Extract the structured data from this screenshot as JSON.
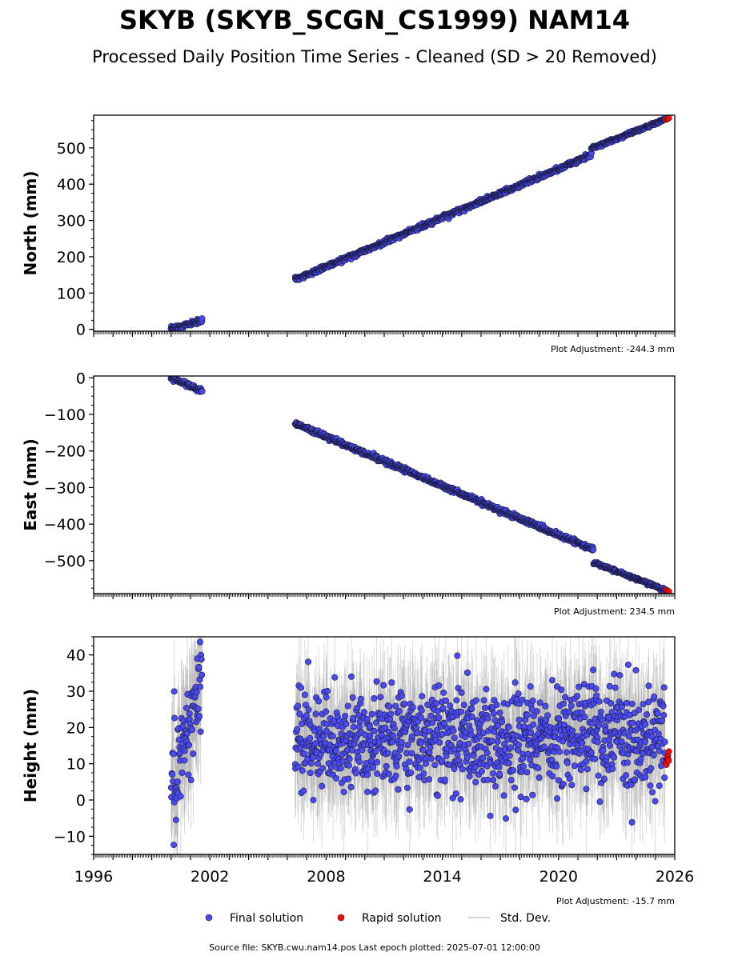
{
  "title": "SKYB (SKYB_SCGN_CS1999) NAM14",
  "subtitle": "Processed Daily Position Time Series - Cleaned (SD > 20 Removed)",
  "footer": "Source file: SKYB.cwu.nam14.pos  Last epoch plotted: 2025-07-01 12:00:00",
  "legend": {
    "final_label": "Final solution",
    "rapid_label": "Rapid solution",
    "sd_label": "Std. Dev.",
    "placement": "bottom-center"
  },
  "colors": {
    "final": "#4a4af0",
    "final_edge": "#1a1a40",
    "rapid": "#e81010",
    "sd": "#7a7a7a"
  },
  "chart_data": [
    {
      "type": "scatter",
      "ylabel": "North (mm)",
      "adjustment": "Plot Adjustment: -244.3 mm",
      "xlim": [
        1996,
        2026
      ],
      "ylim": [
        -5,
        590
      ],
      "yticks": [
        0,
        100,
        200,
        300,
        400,
        500
      ],
      "ytick_labels": [
        "0",
        "100",
        "200",
        "300",
        "400",
        "500"
      ],
      "segments": [
        {
          "x": [
            2000.0,
            2001.6
          ],
          "y": [
            0,
            25
          ],
          "noise": 3
        },
        {
          "x": [
            2006.4,
            2021.7
          ],
          "y": [
            137,
            480
          ],
          "noise": 3
        },
        {
          "x": [
            2021.7,
            2025.5
          ],
          "y": [
            498,
            578
          ],
          "noise": 2
        }
      ],
      "rapid": {
        "x": [
          2025.55,
          2025.7
        ],
        "y": [
          578,
          582
        ]
      }
    },
    {
      "type": "scatter",
      "ylabel": "East (mm)",
      "adjustment": "Plot Adjustment: 234.5 mm",
      "xlim": [
        1996,
        2026
      ],
      "ylim": [
        -590,
        5
      ],
      "yticks": [
        0,
        -100,
        -200,
        -300,
        -400,
        -500
      ],
      "ytick_labels": [
        "0",
        "−100",
        "−200",
        "−300",
        "−400",
        "−500"
      ],
      "segments": [
        {
          "x": [
            2000.0,
            2001.6
          ],
          "y": [
            0,
            -35
          ],
          "noise": 3
        },
        {
          "x": [
            2006.4,
            2021.8
          ],
          "y": [
            -125,
            -470
          ],
          "noise": 3
        },
        {
          "x": [
            2021.8,
            2025.5
          ],
          "y": [
            -505,
            -580
          ],
          "noise": 2
        }
      ],
      "rapid": {
        "x": [
          2025.55,
          2025.7
        ],
        "y": [
          -580,
          -584
        ]
      }
    },
    {
      "type": "scatter",
      "ylabel": "Height (mm)",
      "adjustment": "Plot Adjustment: -15.7 mm",
      "xlim": [
        1996,
        2026
      ],
      "ylim": [
        -15,
        45
      ],
      "yticks": [
        -10,
        0,
        10,
        20,
        30,
        40
      ],
      "ytick_labels": [
        "−10",
        "0",
        "10",
        "20",
        "30",
        "40"
      ],
      "xticks": [
        1996,
        2002,
        2008,
        2014,
        2020,
        2026
      ],
      "xtick_labels": [
        "1996",
        "2002",
        "2008",
        "2014",
        "2020",
        "2026"
      ],
      "segments": [
        {
          "x": [
            2000.0,
            2001.6
          ],
          "y": [
            5,
            32
          ],
          "noise": 8
        },
        {
          "x": [
            2006.4,
            2025.5
          ],
          "y": [
            17,
            17
          ],
          "noise": 7
        }
      ],
      "rapid": {
        "x": [
          2025.55,
          2025.7
        ],
        "y": [
          5,
          15
        ]
      }
    }
  ]
}
